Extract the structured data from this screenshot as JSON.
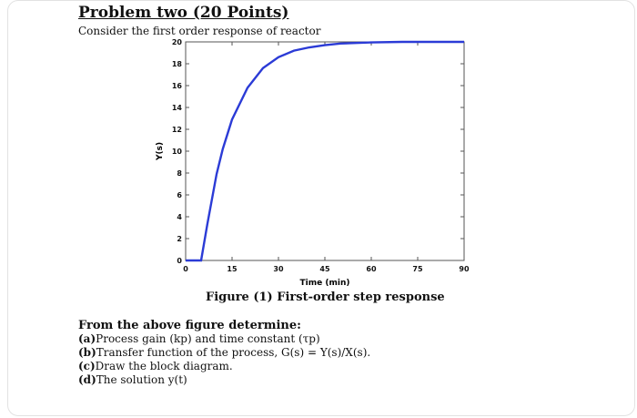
{
  "title": "Problem two (20 Points)",
  "subtitle": "Consider the first order response of reactor",
  "figure_caption": "Figure (1) First-order step response",
  "questions": {
    "intro": "From the above figure determine:",
    "items": [
      {
        "label": "(a)",
        "text": "Process gain (kp) and time constant (τp)"
      },
      {
        "label": "(b)",
        "text": "Transfer function of the process, G(s) = Y(s)/X(s)."
      },
      {
        "label": "(c)",
        "text": "Draw the block diagram."
      },
      {
        "label": "(d)",
        "text": "The solution y(t)"
      }
    ]
  },
  "chart_data": {
    "type": "line",
    "xlabel": "Time (min)",
    "ylabel": "Y(s)",
    "xlim": [
      0,
      90
    ],
    "ylim": [
      0,
      20
    ],
    "xticks": [
      0,
      15,
      30,
      45,
      60,
      75,
      90
    ],
    "yticks": [
      0,
      2,
      4,
      6,
      8,
      10,
      12,
      14,
      16,
      18,
      20
    ],
    "grid": false,
    "line_color": "#2b3bd6",
    "series": [
      {
        "x": [
          0,
          5,
          7,
          10,
          12,
          15,
          20,
          25,
          30,
          35,
          40,
          45,
          50,
          55,
          60,
          70,
          80,
          90
        ],
        "values": [
          0,
          0,
          3.3,
          7.9,
          10.2,
          12.9,
          15.8,
          17.6,
          18.6,
          19.2,
          19.5,
          19.7,
          19.85,
          19.9,
          19.95,
          20,
          20,
          20
        ]
      }
    ]
  }
}
